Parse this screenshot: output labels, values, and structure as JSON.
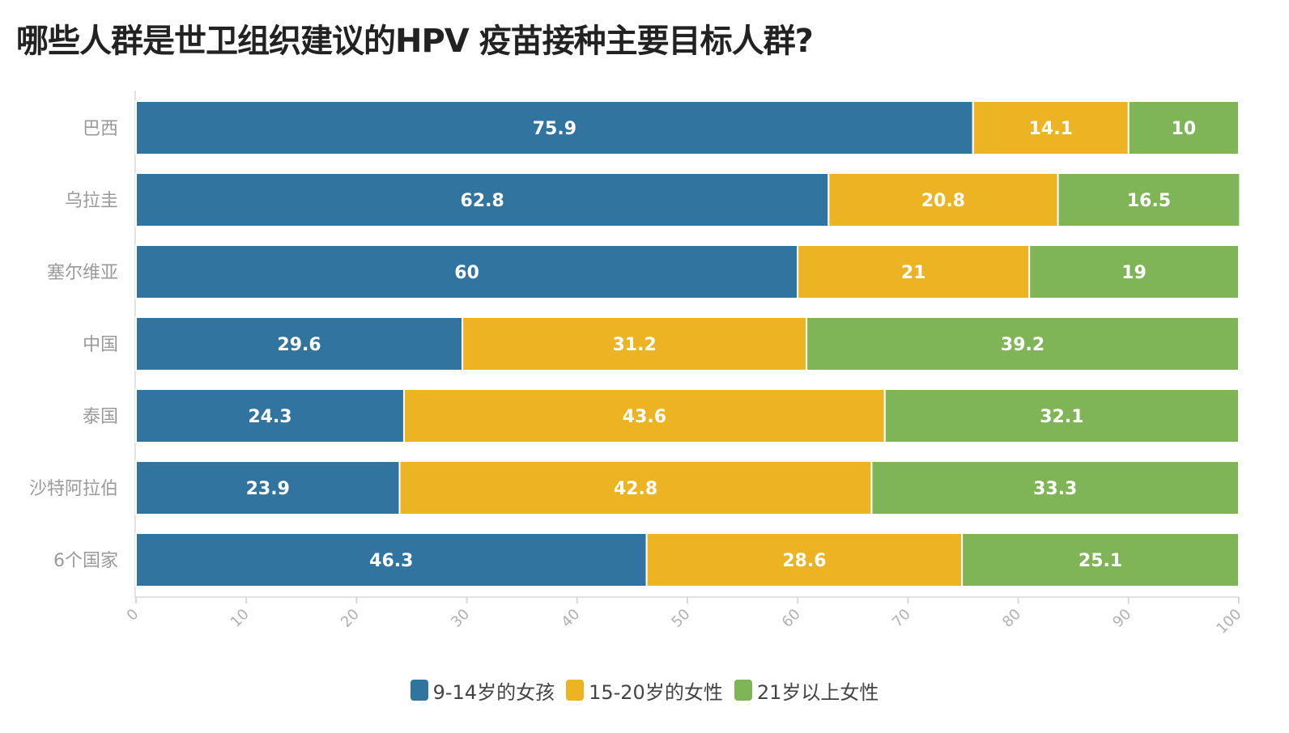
{
  "chart_data": {
    "type": "bar",
    "orientation": "horizontal",
    "stacked": true,
    "title": "哪些人群是世卫组织建议的HPV 疫苗接种主要目标人群?",
    "categories": [
      "巴西",
      "乌拉圭",
      "塞尔维亚",
      "中国",
      "泰国",
      "沙特阿拉伯",
      "6个国家"
    ],
    "series": [
      {
        "name": "9-14岁的女孩",
        "color": "#3274a0",
        "values": [
          75.9,
          62.8,
          60,
          29.6,
          24.3,
          23.9,
          46.3
        ]
      },
      {
        "name": "15-20岁的女性",
        "color": "#ecb322",
        "values": [
          14.1,
          20.8,
          21,
          31.2,
          43.6,
          42.8,
          28.6
        ]
      },
      {
        "name": "21岁以上女性",
        "color": "#7fb457",
        "values": [
          10,
          16.5,
          19,
          39.2,
          32.1,
          33.3,
          25.1
        ]
      }
    ],
    "xlim": [
      0,
      100
    ],
    "xticks": [
      0,
      10,
      20,
      30,
      40,
      50,
      60,
      70,
      80,
      90,
      100
    ],
    "xlabel": "",
    "ylabel": "",
    "grid": false,
    "legend_position": "bottom-center"
  }
}
